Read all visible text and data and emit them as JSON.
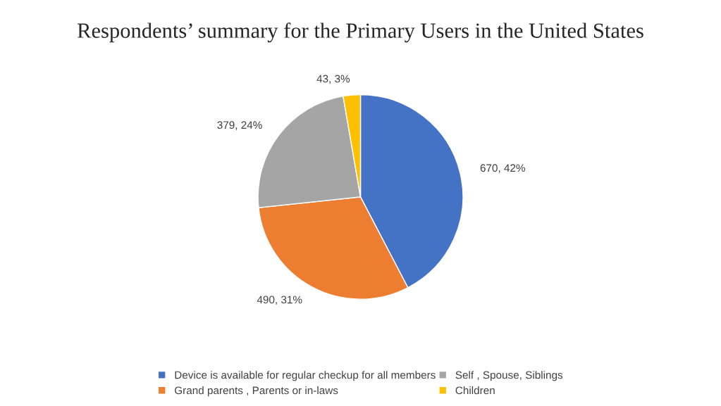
{
  "chart_data": {
    "type": "pie",
    "title": "Respondents’ summary for the Primary Users in the United States",
    "categories": [
      "Device is available for regular checkup for all members",
      "Grand parents , Parents or in-laws",
      "Self , Spouse, Siblings",
      "Children"
    ],
    "values": [
      670,
      490,
      379,
      43
    ],
    "colors": [
      "#4472c4",
      "#ed7d31",
      "#a5a5a5",
      "#ffc000"
    ],
    "value_labels": [
      "670, 42%",
      "490, 31%",
      "379, 24%",
      "43, 3%"
    ],
    "legend": "bottom"
  }
}
